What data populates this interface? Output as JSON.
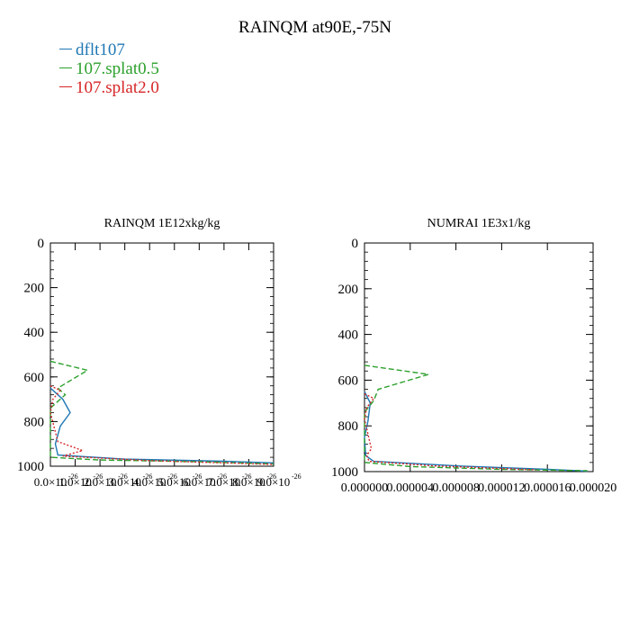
{
  "figure": {
    "title": "RAINQM at90E,-75N"
  },
  "legend": [
    {
      "label": "dflt107",
      "color": "#1f77b4",
      "style": "solid"
    },
    {
      "label": "107.splat0.5",
      "color": "#2ca02c",
      "style": "dashed"
    },
    {
      "label": "107.splat2.0",
      "color": "#d62728",
      "style": "dotted"
    }
  ],
  "chart_data": [
    {
      "type": "line",
      "title": "RAINQM  1E12xkg/kg",
      "y_axis": {
        "range": [
          1000,
          0
        ],
        "ticks": [
          0,
          200,
          400,
          600,
          800,
          1000
        ],
        "tick_labels": [
          "0",
          "200",
          "400",
          "600",
          "800",
          "1000"
        ]
      },
      "x_axis": {
        "range": [
          0,
          9e-26
        ],
        "ticks": [
          0,
          1e-26,
          2e-26,
          3e-26,
          4e-26,
          5e-26,
          6e-26,
          7e-26,
          8e-26,
          9e-26
        ],
        "tick_labels": [
          "0.0×10",
          "1.0×10",
          "2.0×10",
          "3.0×10",
          "4.0×10",
          "5.0×10",
          "6.0×10",
          "7.0×10",
          "8.0×10",
          "9.0×10"
        ],
        "tick_exponents": [
          "-26",
          "-26",
          "-26",
          "-26",
          "-26",
          "-26",
          "-26",
          "-26",
          "-26",
          "-26"
        ]
      },
      "series": [
        {
          "name": "dflt107",
          "points": [
            [
              0,
              650
            ],
            [
              5e-27,
              700
            ],
            [
              8e-27,
              760
            ],
            [
              4e-27,
              820
            ],
            [
              2e-27,
              900
            ],
            [
              3e-27,
              950
            ],
            [
              3e-26,
              968
            ],
            [
              7e-26,
              978
            ],
            [
              9e-26,
              985
            ]
          ]
        },
        {
          "name": "107.splat0.5",
          "points": [
            [
              0,
              530
            ],
            [
              1.5e-26,
              570
            ],
            [
              3e-27,
              650
            ],
            [
              6e-27,
              680
            ],
            [
              0,
              740
            ],
            [
              0,
              960
            ],
            [
              2e-26,
              972
            ],
            [
              6e-26,
              980
            ],
            [
              9e-26,
              990
            ]
          ]
        },
        {
          "name": "107.splat2.0",
          "points": [
            [
              0,
              640
            ],
            [
              4e-27,
              660
            ],
            [
              1e-27,
              700
            ],
            [
              0,
              760
            ],
            [
              3e-27,
              890
            ],
            [
              1.3e-26,
              930
            ],
            [
              5e-27,
              955
            ],
            [
              4e-26,
              975
            ],
            [
              9e-26,
              992
            ]
          ]
        }
      ]
    },
    {
      "type": "line",
      "title": "NUMRAI  1E3x1/kg",
      "y_axis": {
        "range": [
          1000,
          0
        ],
        "ticks": [
          0,
          200,
          400,
          600,
          800,
          1000
        ],
        "tick_labels": [
          "0",
          "200",
          "400",
          "600",
          "800",
          "1000"
        ]
      },
      "x_axis": {
        "range": [
          0,
          2e-05
        ],
        "ticks": [
          0,
          4e-06,
          8e-06,
          1.2e-05,
          1.6e-05,
          2e-05
        ],
        "tick_labels": [
          "0.000000",
          "0.000004",
          "0.000008",
          "0.000012",
          "0.000016",
          "0.000020"
        ]
      },
      "series": [
        {
          "name": "dflt107",
          "points": [
            [
              0,
              650
            ],
            [
              5e-07,
              700
            ],
            [
              3e-07,
              780
            ],
            [
              0,
              850
            ],
            [
              1e-07,
              930
            ],
            [
              8e-07,
              955
            ],
            [
              8e-06,
              975
            ],
            [
              1.6e-05,
              990
            ],
            [
              1.95e-05,
              998
            ]
          ]
        },
        {
          "name": "107.splat0.5",
          "points": [
            [
              0,
              535
            ],
            [
              5.6e-06,
              575
            ],
            [
              1.2e-06,
              640
            ],
            [
              8e-07,
              690
            ],
            [
              0,
              740
            ],
            [
              0,
              960
            ],
            [
              4e-06,
              978
            ],
            [
              1.2e-05,
              990
            ],
            [
              1.95e-05,
              996
            ]
          ]
        },
        {
          "name": "107.splat2.0",
          "points": [
            [
              0,
              660
            ],
            [
              8e-07,
              680
            ],
            [
              2e-07,
              720
            ],
            [
              0,
              770
            ],
            [
              6e-07,
              900
            ],
            [
              2e-07,
              930
            ],
            [
              4e-07,
              955
            ],
            [
              6e-06,
              975
            ],
            [
              1.5e-05,
              992
            ]
          ]
        }
      ]
    }
  ]
}
